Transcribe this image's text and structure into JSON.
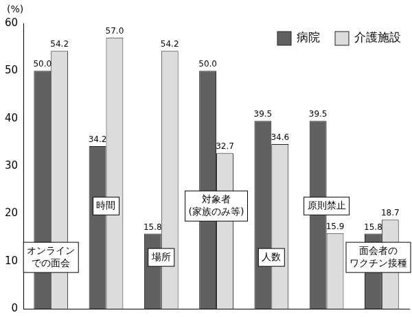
{
  "chart_data": {
    "type": "bar",
    "ylabel": "(%)",
    "categories": [
      [
        "オンライン",
        "での面会"
      ],
      "時間",
      "場所",
      [
        "対象者",
        "(家族のみ等)"
      ],
      "人数",
      "原則禁止",
      [
        "面会者の",
        "ワクチン接種"
      ]
    ],
    "series": [
      {
        "name": "病院",
        "color": "#606060",
        "values": [
          50.0,
          34.2,
          15.8,
          50.0,
          39.5,
          39.5,
          15.8
        ],
        "value_labels": [
          "50.0",
          "34.2",
          "15.8",
          "50.0",
          "39.5",
          "39.5",
          "15.8"
        ]
      },
      {
        "name": "介護施設",
        "color": "#dcdcdc",
        "values": [
          54.2,
          57.0,
          54.2,
          32.7,
          34.6,
          15.9,
          18.7
        ],
        "value_labels": [
          "54.2",
          "57.0",
          "54.2",
          "32.7",
          "34.6",
          "15.9",
          "18.7"
        ]
      }
    ],
    "ylim": [
      0,
      60
    ],
    "yticks": [
      0,
      10,
      20,
      30,
      40,
      50,
      60
    ],
    "grid": false,
    "legend": "upper right",
    "data_labels": true,
    "tick_labels": "y"
  }
}
